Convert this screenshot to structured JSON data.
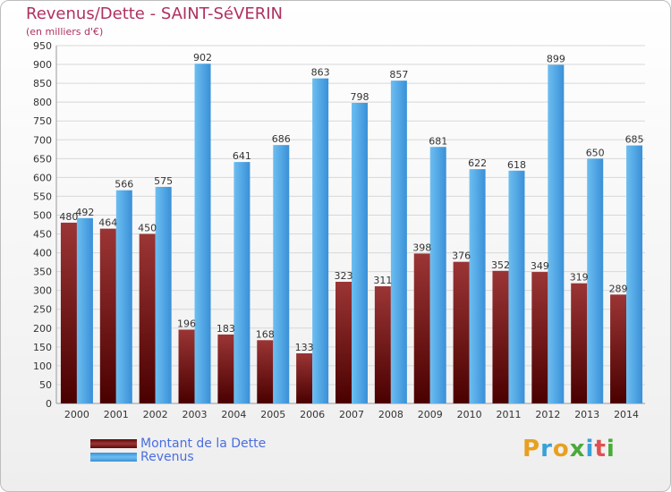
{
  "title": "Revenus/Dette - SAINT-SéVERIN",
  "subtitle": "(en milliers d'€)",
  "chart_data": {
    "type": "bar",
    "categories": [
      "2000",
      "2001",
      "2002",
      "2003",
      "2004",
      "2005",
      "2006",
      "2007",
      "2008",
      "2009",
      "2010",
      "2011",
      "2012",
      "2013",
      "2014"
    ],
    "series": [
      {
        "name": "Montant de la Dette",
        "values": [
          480,
          464,
          450,
          196,
          183,
          168,
          133,
          323,
          311,
          398,
          376,
          352,
          349,
          319,
          289
        ],
        "color": "#7a1a1a"
      },
      {
        "name": "Revenus",
        "values": [
          492,
          566,
          575,
          902,
          641,
          686,
          863,
          798,
          857,
          681,
          622,
          618,
          899,
          650,
          685
        ],
        "color": "#4aa3e8"
      }
    ],
    "ylim": [
      0,
      950
    ],
    "yticks": [
      0,
      50,
      100,
      150,
      200,
      250,
      300,
      350,
      400,
      450,
      500,
      550,
      600,
      650,
      700,
      750,
      800,
      850,
      900,
      950
    ],
    "grid": true,
    "legend": "bottom-left"
  },
  "legend": {
    "items": [
      {
        "label": "Montant de la Dette"
      },
      {
        "label": "Revenus"
      }
    ]
  },
  "logo": {
    "letters": [
      "P",
      "r",
      "o",
      "x",
      "i",
      "t",
      "i"
    ],
    "colors": [
      "#e8a020",
      "#3aa0d8",
      "#e8a020",
      "#4aaa3a",
      "#3aa0d8",
      "#e05050",
      "#4aaa3a"
    ]
  }
}
